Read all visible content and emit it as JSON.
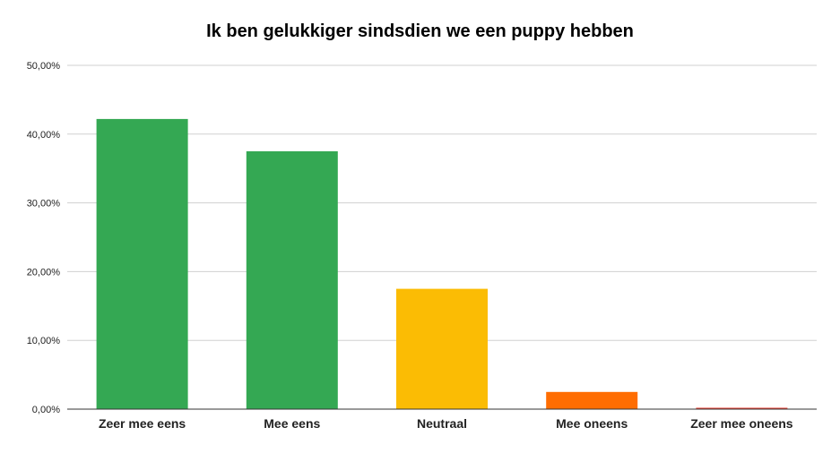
{
  "chart_data": {
    "type": "bar",
    "title": "Ik ben gelukkiger sindsdien we een puppy hebben",
    "categories": [
      "Zeer mee eens",
      "Mee eens",
      "Neutraal",
      "Mee oneens",
      "Zeer mee oneens"
    ],
    "values": [
      42.2,
      37.5,
      17.5,
      2.5,
      0.2
    ],
    "colors": [
      "#34a853",
      "#34a853",
      "#fbbc04",
      "#ff6d01",
      "#ea4335"
    ],
    "ylim": [
      0,
      50
    ],
    "yticks": [
      0,
      10,
      20,
      30,
      40,
      50
    ],
    "ytick_labels": [
      "0,00%",
      "10,00%",
      "20,00%",
      "30,00%",
      "40,00%",
      "50,00%"
    ],
    "grid": true,
    "legend": "none"
  }
}
